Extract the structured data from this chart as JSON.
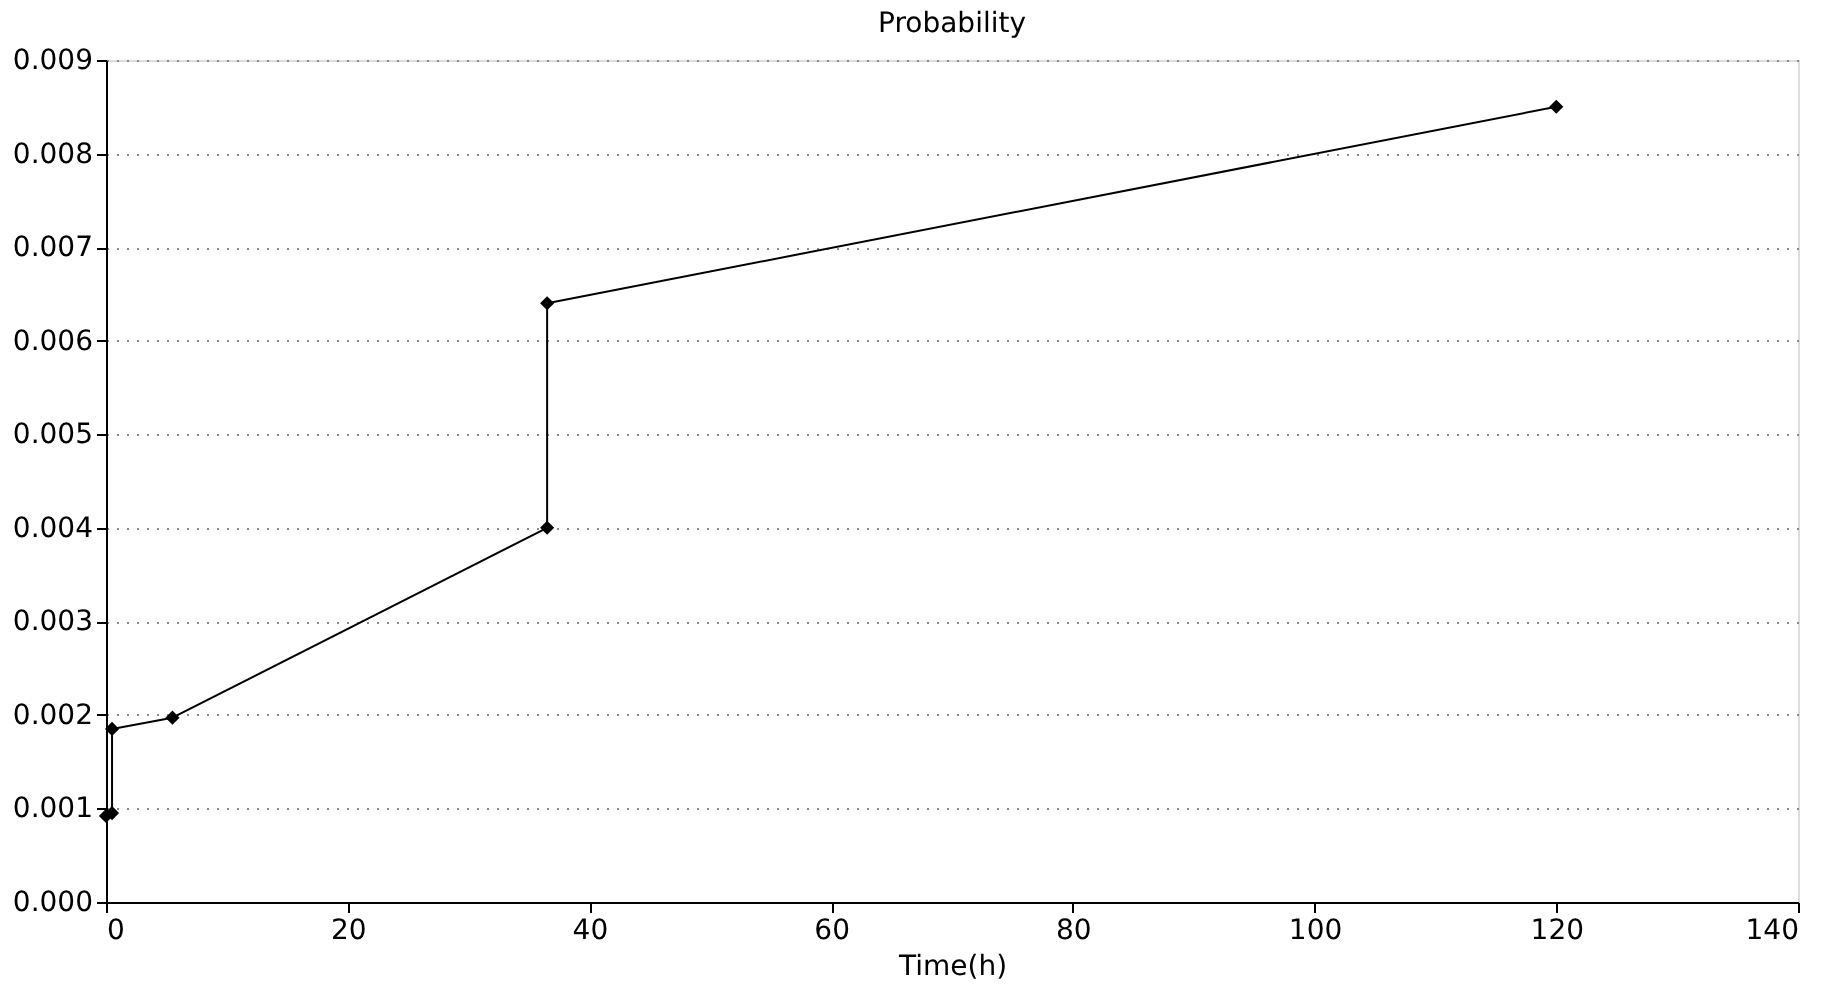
{
  "chart_data": {
    "type": "line",
    "title": "Probability",
    "xlabel": "Time(h)",
    "x": [
      0,
      0.5,
      0.5,
      5.5,
      36.5,
      36.5,
      120
    ],
    "series": [
      {
        "color": "#000000",
        "values": [
          0.00092,
          0.00095,
          0.00185,
          0.00197,
          0.004,
          0.0064,
          0.0085
        ]
      }
    ],
    "xlim": [
      0,
      140
    ],
    "xticks": [
      0,
      20,
      40,
      60,
      80,
      100,
      120,
      140
    ],
    "ylim": [
      0,
      0.009
    ],
    "yticks": [
      {
        "value": 0,
        "label": "0.000"
      },
      {
        "value": 0.001,
        "label": "0.001"
      },
      {
        "value": 0.002,
        "label": "0.002"
      },
      {
        "value": 0.003,
        "label": "0.003"
      },
      {
        "value": 0.004,
        "label": "0.004"
      },
      {
        "value": 0.005,
        "label": "0.005"
      },
      {
        "value": 0.006,
        "label": "0.006"
      },
      {
        "value": 0.007,
        "label": "0.007"
      },
      {
        "value": 0.008,
        "label": "0.008"
      },
      {
        "value": 0.009,
        "label": "0.009"
      }
    ],
    "grid": "y",
    "marker": "diamond",
    "line_style": "solid"
  }
}
